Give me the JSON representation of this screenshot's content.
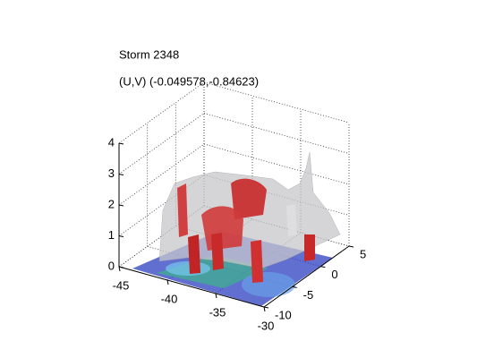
{
  "chart_data": {
    "type": "isosurface3d",
    "title": "Storm 2348",
    "subtitle": "(U,V) (-0.049578,-0.84623)",
    "xlim": [
      -45,
      -30
    ],
    "xticks": [
      -45,
      -40,
      -35,
      -30
    ],
    "ylim": [
      -10,
      5
    ],
    "yticks": [
      -10,
      -5,
      0,
      5
    ],
    "zlim": [
      0,
      4
    ],
    "zticks": [
      0,
      1,
      2,
      3,
      4
    ],
    "grid": true
  }
}
